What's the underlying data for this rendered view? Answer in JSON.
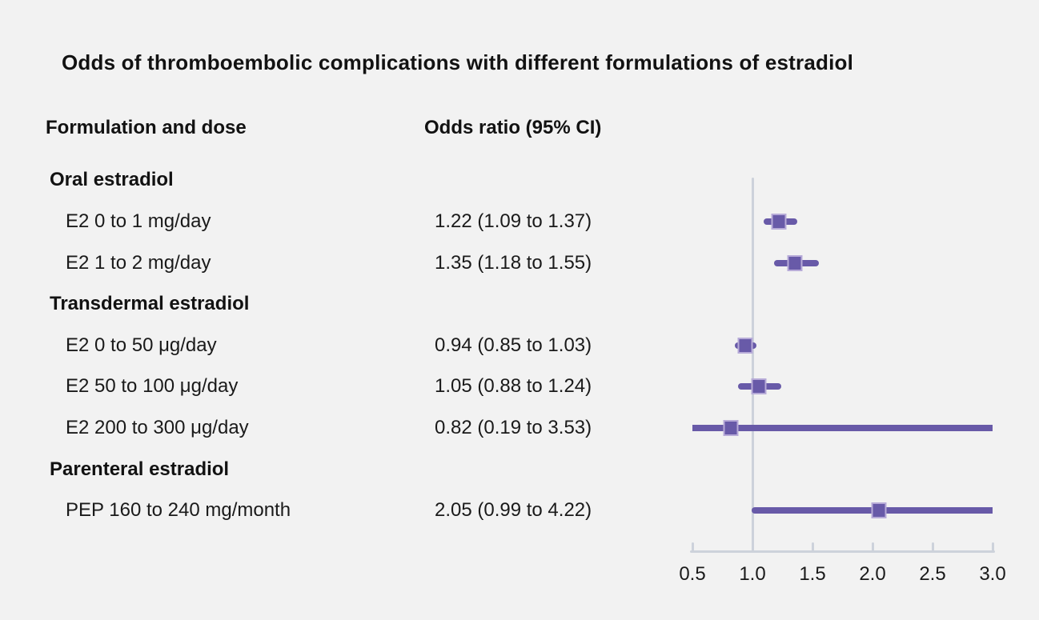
{
  "figure": {
    "title": "Odds of thromboembolic complications with different formulations of estradiol",
    "col_header_left": "Formulation and dose",
    "col_header_right": "Odds ratio (95% CI)"
  },
  "colors": {
    "background": "#f2f2f2",
    "text": "#1a1a1a",
    "marker_purple": "#685aa8",
    "marker_edge": "#b7abd8",
    "axis_gray": "#cdd2db"
  },
  "chart_data": {
    "type": "forest",
    "title": "Odds of thromboembolic complications with different formulations of estradiol",
    "xlabel": "Odds ratio (95% CI)",
    "axis": {
      "min": 0.5,
      "max": 3.0,
      "tick_labels": [
        "0.5",
        "1.0",
        "1.5",
        "2.0",
        "2.5",
        "3.0"
      ],
      "tick_values": [
        0.5,
        1.0,
        1.5,
        2.0,
        2.5,
        3.0
      ],
      "reference_line": 1.0,
      "grid": false
    },
    "rows": [
      {
        "type": "group",
        "label": "Oral estradiol"
      },
      {
        "type": "item",
        "label": "E2 0 to 1 mg/day",
        "value_text": "1.22 (1.09 to 1.37)",
        "or": 1.22,
        "ci_low": 1.09,
        "ci_high": 1.37
      },
      {
        "type": "item",
        "label": "E2 1 to 2 mg/day",
        "value_text": "1.35 (1.18 to 1.55)",
        "or": 1.35,
        "ci_low": 1.18,
        "ci_high": 1.55
      },
      {
        "type": "group",
        "label": "Transdermal estradiol"
      },
      {
        "type": "item",
        "label": "E2 0 to 50 μg/day",
        "value_text": "0.94 (0.85 to 1.03)",
        "or": 0.94,
        "ci_low": 0.85,
        "ci_high": 1.03
      },
      {
        "type": "item",
        "label": "E2 50 to 100 μg/day",
        "value_text": "1.05 (0.88 to 1.24)",
        "or": 1.05,
        "ci_low": 0.88,
        "ci_high": 1.24
      },
      {
        "type": "item",
        "label": "E2 200 to 300 μg/day",
        "value_text": "0.82 (0.19 to 3.53)",
        "or": 0.82,
        "ci_low": 0.19,
        "ci_high": 3.53
      },
      {
        "type": "group",
        "label": "Parenteral estradiol"
      },
      {
        "type": "item",
        "label": "PEP 160 to 240 mg/month",
        "value_text": "2.05 (0.99 to 4.22)",
        "or": 2.05,
        "ci_low": 0.99,
        "ci_high": 4.22
      }
    ]
  }
}
